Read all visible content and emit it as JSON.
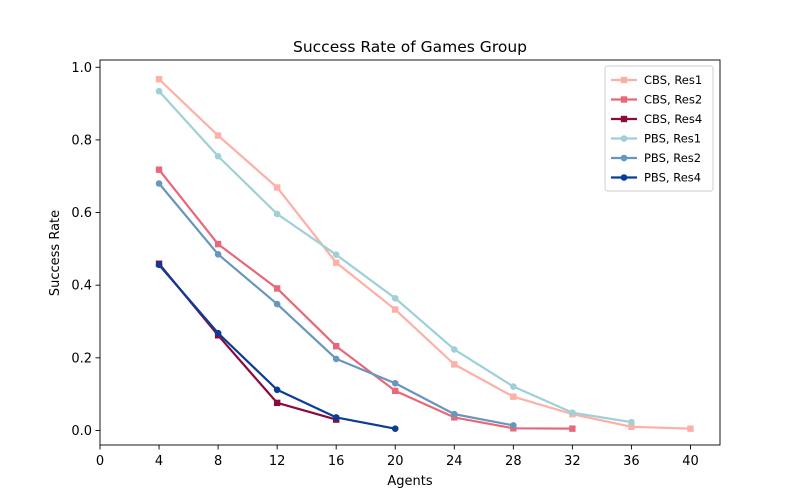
{
  "chart_data": {
    "type": "line",
    "title": "Success Rate of Games Group",
    "xlabel": "Agents",
    "ylabel": "Success Rate",
    "xlim": [
      0,
      42
    ],
    "ylim": [
      -0.04,
      1.02
    ],
    "xticks": [
      0,
      4,
      8,
      12,
      16,
      20,
      24,
      28,
      32,
      36,
      40
    ],
    "yticks": [
      0.0,
      0.2,
      0.4,
      0.6,
      0.8,
      1.0
    ],
    "xtick_labels": [
      "0",
      "4",
      "8",
      "12",
      "16",
      "20",
      "24",
      "28",
      "32",
      "36",
      "40"
    ],
    "ytick_labels": [
      "0.0",
      "0.2",
      "0.4",
      "0.6",
      "0.8",
      "1.0"
    ],
    "grid": false,
    "legend_position": "top-right",
    "series": [
      {
        "name": "CBS, Res1",
        "color": "#fdb0a6",
        "marker": "square",
        "x": [
          4,
          8,
          12,
          16,
          20,
          24,
          28,
          32,
          36,
          40
        ],
        "y": [
          0.967,
          0.812,
          0.669,
          0.462,
          0.333,
          0.182,
          0.093,
          0.045,
          0.01,
          0.005
        ]
      },
      {
        "name": "CBS, Res2",
        "color": "#e8687a",
        "marker": "square",
        "x": [
          4,
          8,
          12,
          16,
          20,
          24,
          28,
          32
        ],
        "y": [
          0.718,
          0.513,
          0.391,
          0.232,
          0.109,
          0.036,
          0.006,
          0.005
        ]
      },
      {
        "name": "CBS, Res4",
        "color": "#8b0a3e",
        "marker": "square",
        "x": [
          4,
          8,
          12,
          16
        ],
        "y": [
          0.459,
          0.262,
          0.076,
          0.03
        ]
      },
      {
        "name": "PBS, Res1",
        "color": "#9fd0d8",
        "marker": "circle",
        "x": [
          4,
          8,
          12,
          16,
          20,
          24,
          28,
          32,
          36
        ],
        "y": [
          0.934,
          0.755,
          0.596,
          0.484,
          0.364,
          0.223,
          0.121,
          0.049,
          0.023
        ]
      },
      {
        "name": "PBS, Res2",
        "color": "#6996bd",
        "marker": "circle",
        "x": [
          4,
          8,
          12,
          16,
          20,
          24,
          28
        ],
        "y": [
          0.68,
          0.485,
          0.348,
          0.197,
          0.13,
          0.045,
          0.014
        ]
      },
      {
        "name": "PBS, Res4",
        "color": "#0b3c96",
        "marker": "circle",
        "x": [
          4,
          8,
          12,
          16,
          20
        ],
        "y": [
          0.456,
          0.268,
          0.112,
          0.036,
          0.005
        ]
      }
    ]
  }
}
